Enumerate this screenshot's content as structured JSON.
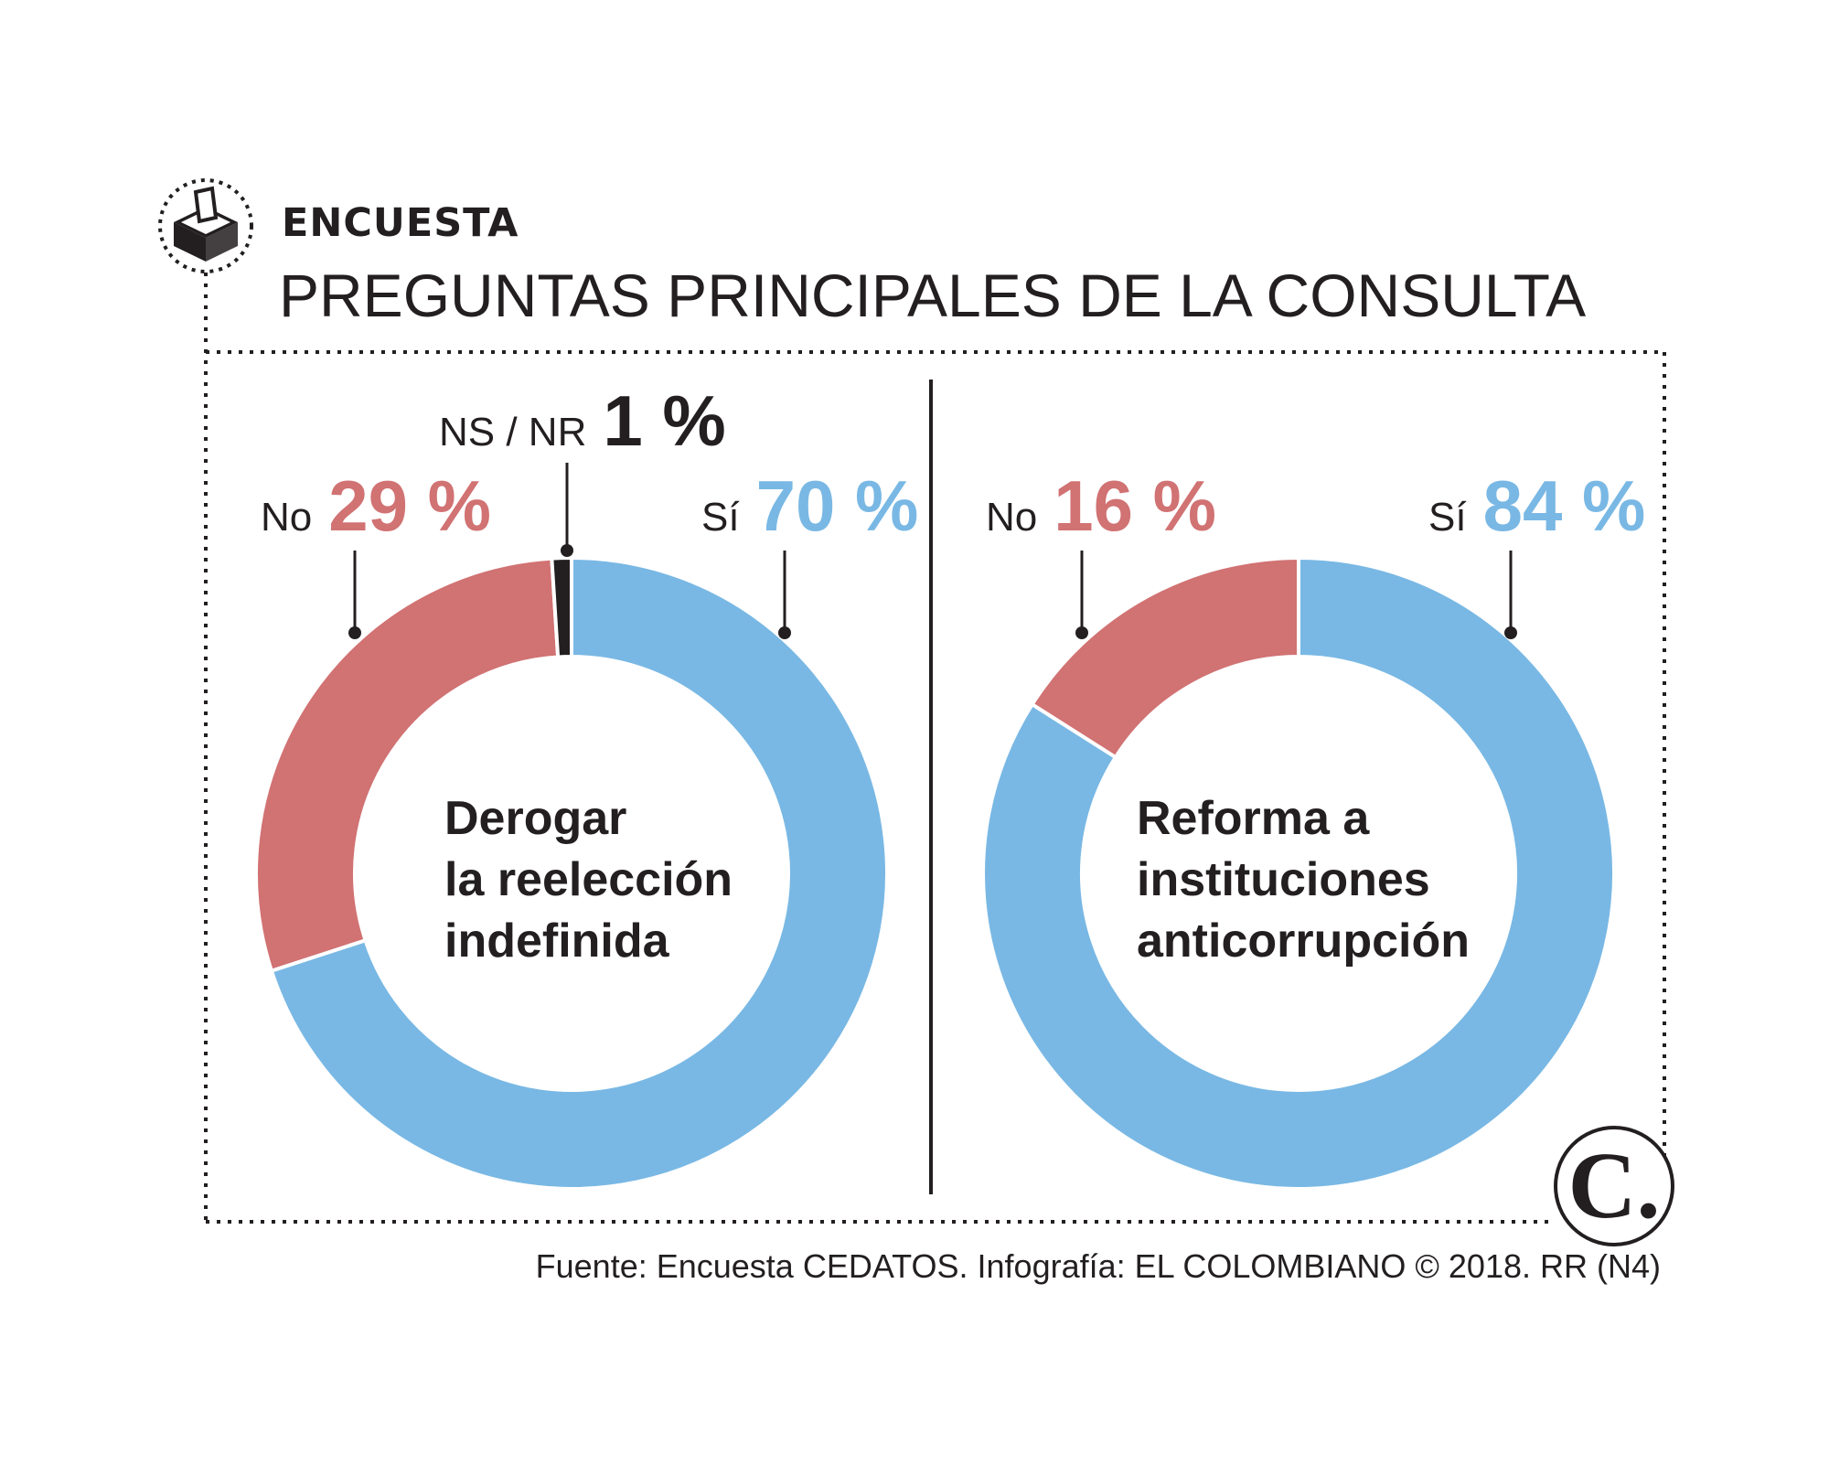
{
  "header": {
    "kicker": "ENCUESTA",
    "title": "PREGUNTAS PRINCIPALES DE LA CONSULTA",
    "icon": "ballot-box-icon"
  },
  "colors": {
    "yes": "#79b8e4",
    "no": "#d17273",
    "nsnr": "#231f20",
    "text": "#231f20"
  },
  "chart_data": [
    {
      "type": "pie",
      "title": "Derogar la reelección indefinida",
      "title_lines": [
        "Derogar",
        "la reelección",
        "indefinida"
      ],
      "slices": [
        {
          "key": "yes",
          "label": "Sí",
          "value": 70,
          "display": "70 %"
        },
        {
          "key": "no",
          "label": "No",
          "value": 29,
          "display": "29 %"
        },
        {
          "key": "nsnr",
          "label": "NS / NR",
          "value": 1,
          "display": "1 %"
        }
      ]
    },
    {
      "type": "pie",
      "title": "Reforma a instituciones anticorrupción",
      "title_lines": [
        "Reforma a",
        "instituciones",
        "anticorrupción"
      ],
      "slices": [
        {
          "key": "yes",
          "label": "Sí",
          "value": 84,
          "display": "84 %"
        },
        {
          "key": "no",
          "label": "No",
          "value": 16,
          "display": "16 %"
        }
      ]
    }
  ],
  "footer": {
    "source": "Fuente: Encuesta CEDATOS. Infografía: EL COLOMBIANO © 2018. RR (N4)",
    "logo_letter": "C."
  }
}
